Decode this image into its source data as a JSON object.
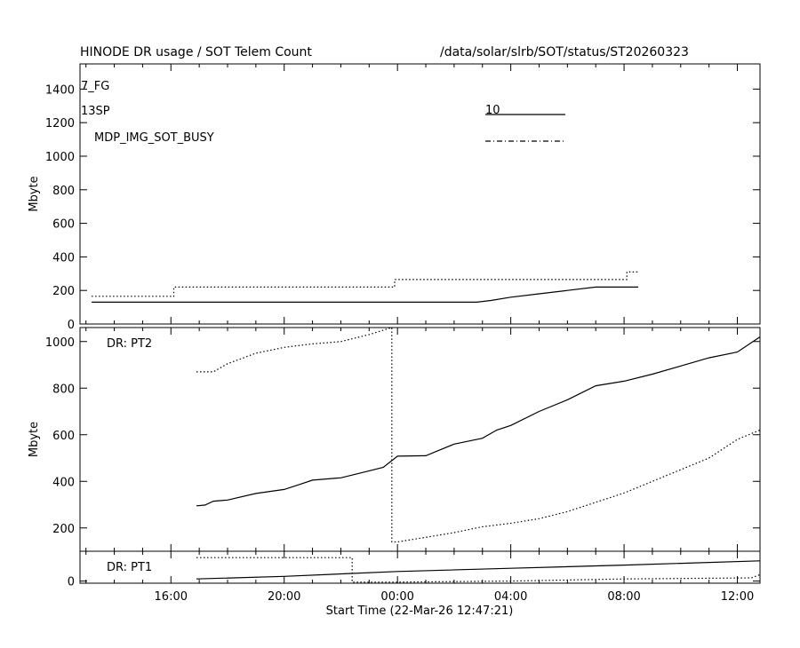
{
  "header": {
    "title": "HINODE DR usage / SOT Telem Count",
    "path": "/data/solar/slrb/SOT/status/ST20260323"
  },
  "chart_data": [
    {
      "type": "line",
      "panel": "top",
      "ylabel": "Mbyte",
      "ylim": [
        0,
        1550
      ],
      "yticks": [
        0,
        200,
        400,
        600,
        800,
        1000,
        1200,
        1400
      ],
      "annotations": [
        "7_FG",
        "13SP",
        "MDP_IMG_SOT_BUSY"
      ],
      "legend": [
        {
          "label": "10",
          "style": "solid"
        },
        {
          "label": "",
          "style": "dash-dot"
        }
      ],
      "series": [
        {
          "style": "solid",
          "x": [
            13.2,
            16.5,
            20,
            24,
            26.8,
            27.3,
            28,
            29,
            30,
            31,
            32,
            32.5
          ],
          "y": [
            130,
            130,
            130,
            130,
            130,
            140,
            160,
            180,
            200,
            220,
            220,
            220
          ]
        },
        {
          "style": "dotted",
          "x": [
            13.2,
            14.5,
            16.1,
            16.1,
            17,
            20,
            23.9,
            23.9,
            25,
            28,
            32.1,
            32.1,
            32.5
          ],
          "y": [
            165,
            165,
            165,
            220,
            220,
            220,
            220,
            265,
            265,
            265,
            265,
            310,
            310
          ]
        }
      ]
    },
    {
      "type": "line",
      "panel": "middle",
      "annotation": "DR: PT2",
      "ylabel": "Mbyte",
      "ylim": [
        100,
        1060
      ],
      "yticks": [
        200,
        400,
        600,
        800,
        1000
      ],
      "series": [
        {
          "style": "solid",
          "x": [
            16.9,
            17.2,
            17.5,
            18,
            19,
            20,
            20.5,
            21,
            22,
            23,
            23.5,
            24,
            25,
            26,
            27,
            27.5,
            28,
            29,
            30,
            31,
            32,
            33,
            34,
            35,
            36,
            36.8
          ],
          "y": [
            295,
            298,
            315,
            320,
            348,
            365,
            385,
            405,
            415,
            445,
            460,
            508,
            510,
            560,
            585,
            620,
            640,
            700,
            750,
            810,
            830,
            860,
            895,
            930,
            955,
            1020
          ]
        },
        {
          "style": "dotted",
          "x": [
            16.9,
            17.5,
            18,
            19,
            20,
            21,
            22,
            23,
            23.8,
            23.8,
            24,
            25,
            26,
            27,
            28,
            29,
            30,
            31,
            32,
            33,
            34,
            35,
            36,
            36.8
          ],
          "y": [
            870,
            870,
            905,
            950,
            975,
            990,
            1000,
            1030,
            1060,
            140,
            140,
            160,
            180,
            205,
            220,
            240,
            270,
            310,
            350,
            400,
            450,
            500,
            580,
            620
          ]
        }
      ]
    },
    {
      "type": "line",
      "panel": "bottom",
      "annotation": "DR: PT1",
      "ylim": [
        -10,
        140
      ],
      "yticks": [
        0
      ],
      "series": [
        {
          "style": "solid",
          "x": [
            16.9,
            20,
            24,
            28,
            32,
            36.8
          ],
          "y": [
            10,
            22,
            45,
            60,
            75,
            95
          ]
        },
        {
          "style": "dotted",
          "x": [
            16.9,
            20,
            22.4,
            22.4,
            24,
            28,
            32,
            36.5,
            36.8
          ],
          "y": [
            110,
            110,
            110,
            -5,
            -5,
            0,
            10,
            15,
            30
          ]
        }
      ]
    }
  ],
  "xaxis": {
    "label": "Start Time (22-Mar-26 12:47:21)",
    "range": [
      12.79,
      36.8
    ],
    "tick_hours": [
      16,
      20,
      24,
      28,
      32,
      36
    ],
    "tick_labels": [
      "16:00",
      "20:00",
      "00:00",
      "04:00",
      "08:00",
      "12:00"
    ]
  }
}
